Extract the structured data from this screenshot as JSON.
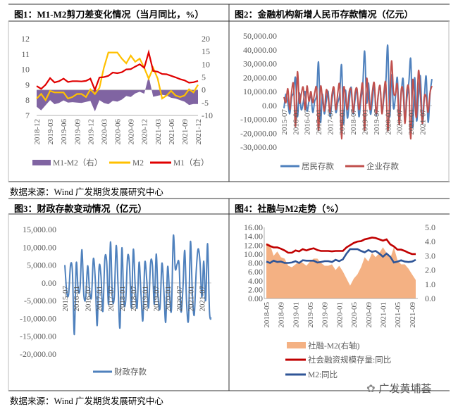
{
  "figures": [
    {
      "title": "图1：M1-M2剪刀差变化情况（当月同比，%）"
    },
    {
      "title": "图2：金融机构新增人民币存款情况（亿元）"
    },
    {
      "title": "图3：财政存款变动情况（亿元）"
    },
    {
      "title": "图4：社融与M2走势（%）"
    }
  ],
  "source_top": "数据来源：Wind  广发期货发展研究中心",
  "source_bottom": "数据来源：Wind  广发期货发展研究中心",
  "watermark": "广发黄埔荟",
  "chart_data": [
    {
      "type": "line+area",
      "x": [
        "2018-12",
        "2019-01",
        "2019-02",
        "2019-03",
        "2019-04",
        "2019-05",
        "2019-06",
        "2019-07",
        "2019-08",
        "2019-09",
        "2019-10",
        "2019-11",
        "2019-12",
        "2020-01",
        "2020-02",
        "2020-03",
        "2020-04",
        "2020-05",
        "2020-06",
        "2020-07",
        "2020-08",
        "2020-09",
        "2020-10",
        "2020-11",
        "2020-12",
        "2021-01",
        "2021-02",
        "2021-03",
        "2021-04",
        "2021-05",
        "2021-06",
        "2021-07",
        "2021-08",
        "2021-09",
        "2021-10",
        "2021-11",
        "2021-12"
      ],
      "x_ticks": [
        "2018-12",
        "2019-03",
        "2019-06",
        "2019-09",
        "2019-12",
        "2020-03",
        "2020-06",
        "2020-09",
        "2020-12",
        "2021-03",
        "2021-06",
        "2021-09",
        "2021-12"
      ],
      "y_left": {
        "lim": [
          7,
          12
        ],
        "ticks": [
          "7",
          "8",
          "9",
          "10",
          "11",
          "12"
        ]
      },
      "y_right": {
        "lim": [
          -10,
          20
        ],
        "ticks": [
          "-10",
          "-5",
          "0",
          "5",
          "10",
          "15",
          "20"
        ]
      },
      "grid": false,
      "legend_position": "bottom",
      "series": [
        {
          "name": "M1-M2（右）",
          "axis": "right",
          "style": "area",
          "color": "#8064A2",
          "values": [
            -6.6,
            -8.0,
            -6.0,
            -4.0,
            -5.6,
            -5.1,
            -4.1,
            -5.0,
            -4.8,
            -5.0,
            -5.1,
            -4.7,
            -4.3,
            -8.4,
            -4.0,
            -5.1,
            -5.6,
            -4.3,
            -4.6,
            -3.8,
            -2.4,
            -2.8,
            -1.4,
            -0.7,
            -1.5,
            5.3,
            -2.7,
            -2.3,
            -1.9,
            -2.2,
            -3.1,
            -3.4,
            -4.0,
            -4.6,
            -5.9,
            -5.5,
            -5.5
          ]
        },
        {
          "name": "M2",
          "axis": "left",
          "style": "line",
          "color": "#FFC000",
          "values": [
            8.1,
            8.4,
            8.0,
            8.6,
            8.5,
            8.5,
            8.5,
            8.1,
            8.2,
            8.4,
            8.4,
            8.2,
            8.7,
            8.4,
            8.8,
            10.1,
            11.1,
            11.1,
            11.1,
            10.7,
            10.4,
            10.9,
            10.5,
            10.7,
            10.1,
            9.4,
            10.1,
            9.4,
            8.1,
            8.3,
            8.6,
            8.3,
            8.2,
            8.3,
            8.7,
            8.5,
            9.0
          ]
        },
        {
          "name": "M1（右）",
          "axis": "right",
          "style": "line",
          "color": "#E00000",
          "values": [
            1.5,
            0.4,
            2.0,
            4.6,
            2.9,
            3.4,
            4.4,
            3.1,
            3.4,
            3.4,
            3.3,
            3.5,
            4.4,
            0.0,
            4.8,
            5.0,
            5.5,
            6.8,
            6.5,
            6.9,
            8.0,
            8.1,
            9.1,
            10.0,
            8.6,
            14.7,
            7.4,
            7.1,
            6.2,
            6.1,
            5.5,
            4.9,
            4.2,
            3.7,
            2.8,
            3.0,
            3.5
          ]
        }
      ]
    },
    {
      "type": "line",
      "x_start": "2015-07",
      "x_end": "2021-12",
      "x_ticks": [
        "2015-07",
        "2016-01",
        "2016-07",
        "2017-01",
        "2017-07",
        "2018-01",
        "2018-07",
        "2019-01",
        "2019-07",
        "2020-01",
        "2020-07",
        "2021-01",
        "2021-07"
      ],
      "y": {
        "lim": [
          -30000,
          50000
        ],
        "ticks": [
          "-30,000.00",
          "-20,000.00",
          "-10,000.00",
          "0.00",
          "10,000.00",
          "20,000.00",
          "30,000.00",
          "40,000.00",
          "50,000.00"
        ]
      },
      "grid": "zero-line only",
      "legend_position": "bottom",
      "series": [
        {
          "name": "居民存款",
          "color": "#4F81BD",
          "values": [
            -2000,
            8000,
            2000,
            -6000,
            6000,
            9000,
            20000,
            -8000,
            9000,
            -3000,
            2000,
            10000,
            -4000,
            3000,
            7000,
            -5000,
            3000,
            8000,
            31000,
            -12000,
            8000,
            -6000,
            3000,
            10000,
            -8000,
            4000,
            11000,
            -5000,
            2000,
            8000,
            29000,
            -13000,
            11000,
            -9000,
            3000,
            13000,
            -6000,
            4000,
            12000,
            -8000,
            4000,
            14000,
            39000,
            2000,
            16000,
            -6000,
            3000,
            15000,
            -7000,
            6000,
            14000,
            -5000,
            5000,
            16000,
            43000,
            -8000,
            22000,
            -2000,
            6000,
            20000,
            -9000,
            8000,
            19000,
            -10000,
            5000,
            17000,
            33000,
            -16000,
            20000,
            -11000,
            6000,
            21000,
            -13000,
            4000,
            21000,
            -12000,
            8000,
            19000
          ]
        },
        {
          "name": "企业存款",
          "color": "#C0504D",
          "values": [
            6000,
            2000,
            12000,
            -3000,
            10000,
            15000,
            -15000,
            24000,
            2000,
            8000,
            13000,
            -3000,
            14000,
            3000,
            10000,
            2000,
            9000,
            12000,
            -18000,
            13000,
            6000,
            -4000,
            11000,
            6000,
            -5000,
            8000,
            13000,
            -3000,
            9000,
            14000,
            -24000,
            12000,
            6000,
            -3000,
            10000,
            11000,
            -5000,
            9000,
            12000,
            -3000,
            8000,
            15000,
            -18000,
            19000,
            5000,
            -3000,
            10000,
            16000,
            -6000,
            7000,
            14000,
            -6000,
            9000,
            16000,
            -18000,
            3000,
            32000,
            10000,
            8000,
            15000,
            -14000,
            11000,
            10000,
            -13000,
            11000,
            11000,
            -24000,
            18000,
            3000,
            -8000,
            25000,
            8000,
            -13000,
            6000,
            6000,
            -5000,
            9000,
            14000
          ]
        }
      ]
    },
    {
      "type": "line",
      "x_start": "2015-07",
      "x_end": "2021-12",
      "x_ticks": [
        "2015-07",
        "2016-01",
        "2016-07",
        "2017-01",
        "2017-07",
        "2018-01",
        "2018-07",
        "2019-01",
        "2019-07",
        "2020-01",
        "2020-07",
        "2021-01",
        "2021-07"
      ],
      "y": {
        "lim": [
          -20000,
          15000
        ],
        "ticks": [
          "-20,000.00",
          "-15,000.00",
          "-10,000.00",
          "-5,000.00",
          "0.00",
          "5,000.00",
          "10,000.00",
          "15,000.00"
        ]
      },
      "grid": "zero-line only",
      "legend_position": "bottom",
      "series": [
        {
          "name": "财政存款",
          "color": "#4F81BD",
          "values": [
            5000,
            -2500,
            -3200,
            5000,
            3000,
            -14500,
            5500,
            -2000,
            -1500,
            9300,
            -3500,
            -4000,
            4800,
            -2000,
            -4000,
            6800,
            1000,
            -12000,
            4300,
            2000,
            -8000,
            6500,
            6000,
            -6000,
            11500,
            -4000,
            -4000,
            10500,
            -1000,
            -12500,
            9800,
            -5000,
            -5000,
            7300,
            5000,
            -7000,
            9400,
            -1000,
            -7000,
            5800,
            -3000,
            -10500,
            5600,
            1000,
            -7000,
            5400,
            5000,
            -6000,
            8100,
            -4000,
            -7000,
            5500,
            -2000,
            -11000,
            4500,
            -3000,
            -7500,
            13200,
            4000,
            5300,
            5300,
            -8000,
            -2000,
            9100,
            -6000,
            -10000,
            11600,
            -3000,
            -9000,
            3000,
            9500,
            6000,
            -4000,
            6100,
            -5000,
            11000,
            -8000,
            -10000
          ]
        }
      ]
    },
    {
      "type": "line+area",
      "x_start": "2018-05",
      "x_end": "2021-10",
      "x_ticks": [
        "2018-05",
        "2018-09",
        "2019-01",
        "2019-05",
        "2019-09",
        "2020-01",
        "2020-05",
        "2020-09",
        "2021-01",
        "2021-05",
        "2021-09"
      ],
      "y_left": {
        "lim": [
          0,
          16
        ],
        "ticks": [
          "0.00",
          "2.00",
          "4.00",
          "6.00",
          "8.00",
          "10.00",
          "12.00",
          "14.00",
          "16.00"
        ]
      },
      "y_right": {
        "lim": [
          0,
          5
        ],
        "ticks": [
          "0.0",
          "1.0",
          "2.0",
          "3.0",
          "4.0",
          "5.0"
        ]
      },
      "grid": false,
      "legend_position": "bottom",
      "series": [
        {
          "name": "社融-M2(右轴)",
          "axis": "right",
          "style": "area",
          "color": "#F4B183",
          "values": [
            3.9,
            3.8,
            3.0,
            3.3,
            2.9,
            2.8,
            2.3,
            2.2,
            2.4,
            2.6,
            2.5,
            2.3,
            2.6,
            2.8,
            2.8,
            2.5,
            2.3,
            2.3,
            2.4,
            2.0,
            2.3,
            1.9,
            1.4,
            0.9,
            1.4,
            1.7,
            2.2,
            2.9,
            2.6,
            3.2,
            2.9,
            3.2,
            3.6,
            3.2,
            2.8,
            3.6,
            2.7,
            2.4,
            2.4,
            2.1,
            1.7,
            1.3
          ]
        },
        {
          "name": "社会融资规模存量:同比",
          "axis": "left",
          "style": "line",
          "color": "#C00000",
          "values": [
            12.2,
            11.8,
            11.5,
            11.5,
            11.2,
            10.8,
            10.3,
            10.3,
            10.8,
            10.6,
            11.1,
            10.8,
            11.1,
            11.3,
            10.9,
            10.7,
            10.7,
            10.7,
            10.6,
            10.7,
            10.7,
            10.7,
            11.5,
            12.0,
            12.5,
            12.8,
            12.9,
            13.3,
            13.5,
            13.7,
            13.6,
            13.3,
            13.0,
            13.3,
            12.2,
            11.7,
            11.0,
            11.0,
            10.7,
            10.3,
            10.0,
            10.0
          ]
        },
        {
          "name": "M2:同比",
          "axis": "left",
          "style": "line",
          "color": "#2F5597",
          "values": [
            8.3,
            8.0,
            8.5,
            8.2,
            8.3,
            8.0,
            8.0,
            8.1,
            8.4,
            8.0,
            8.6,
            8.5,
            8.5,
            8.5,
            8.1,
            8.2,
            8.4,
            8.4,
            8.2,
            8.7,
            8.4,
            8.8,
            10.1,
            11.1,
            11.1,
            11.1,
            10.7,
            10.4,
            10.9,
            10.5,
            10.7,
            10.1,
            9.4,
            10.1,
            9.4,
            8.1,
            8.3,
            8.6,
            8.3,
            8.2,
            8.3,
            8.7
          ]
        }
      ]
    }
  ]
}
